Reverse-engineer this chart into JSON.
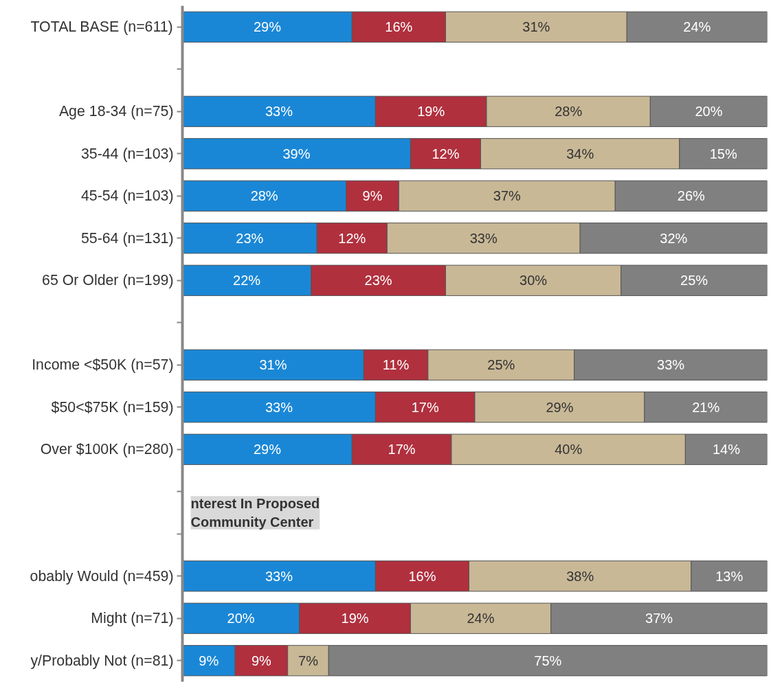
{
  "chart_data": {
    "type": "bar",
    "orientation": "horizontal",
    "stacked": true,
    "grid": false,
    "legend": false,
    "tick_labels": "y",
    "categories": [
      "TOTAL BASE (n=611)",
      null,
      "Age 18-34 (n=75)",
      "35-44 (n=103)",
      "45-54 (n=103)",
      "55-64 (n=131)",
      "65 Or Older (n=199)",
      null,
      "Income <$50K (n=57)",
      "$50<$75K (n=159)",
      "Over $100K (n=280)",
      null,
      null,
      "obably Would (n=459)",
      "Might (n=71)",
      "y/Probably Not (n=81)"
    ],
    "series": [
      {
        "color": "#1a87d6",
        "values": [
          29,
          null,
          33,
          39,
          28,
          23,
          22,
          null,
          31,
          33,
          29,
          null,
          null,
          33,
          20,
          9
        ],
        "value_labels": [
          "29%",
          null,
          "33%",
          "39%",
          "28%",
          "23%",
          "22%",
          null,
          "31%",
          "33%",
          "29%",
          null,
          null,
          "33%",
          "20%",
          "9%"
        ]
      },
      {
        "color": "#b0303e",
        "values": [
          16,
          null,
          19,
          12,
          9,
          12,
          23,
          null,
          11,
          17,
          17,
          null,
          null,
          16,
          19,
          9
        ],
        "value_labels": [
          "16%",
          null,
          "19%",
          "12%",
          "9%",
          "12%",
          "23%",
          null,
          "11%",
          "17%",
          "17%",
          null,
          null,
          "16%",
          "19%",
          "9%"
        ]
      },
      {
        "color": "#c8b896",
        "values": [
          31,
          null,
          28,
          34,
          37,
          33,
          30,
          null,
          25,
          29,
          40,
          null,
          null,
          38,
          24,
          7
        ],
        "value_labels": [
          "31%",
          null,
          "28%",
          "34%",
          "37%",
          "33%",
          "30%",
          null,
          "25%",
          "29%",
          "40%",
          null,
          null,
          "38%",
          "24%",
          "7%"
        ]
      },
      {
        "color": "#808080",
        "values": [
          24,
          null,
          20,
          15,
          26,
          32,
          25,
          null,
          33,
          21,
          14,
          null,
          null,
          13,
          37,
          75
        ],
        "value_labels": [
          "24%",
          null,
          "20%",
          "15%",
          "26%",
          "32%",
          "25%",
          null,
          "33%",
          "21%",
          "14%",
          null,
          null,
          "13%",
          "37%",
          "75%"
        ]
      }
    ],
    "annotations": [
      "nterest In Proposed Community Center"
    ]
  }
}
